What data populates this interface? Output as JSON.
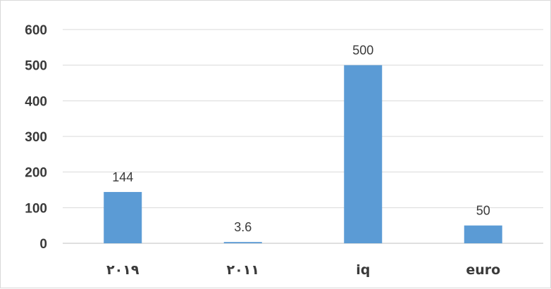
{
  "chart_data": {
    "type": "bar",
    "title": "",
    "xlabel": "",
    "ylabel": "",
    "categories": [
      "٢٠١٩",
      "٢٠١١",
      "iq",
      "euro"
    ],
    "values": [
      144,
      3.6,
      500,
      50
    ],
    "data_labels": [
      "144",
      "3.6",
      "500",
      "50"
    ],
    "y_ticks": [
      "0",
      "100",
      "200",
      "300",
      "400",
      "500",
      "600"
    ],
    "ylim": [
      0,
      600
    ],
    "grid": true,
    "legend": "none",
    "bar_color": "#5b9bd5"
  }
}
